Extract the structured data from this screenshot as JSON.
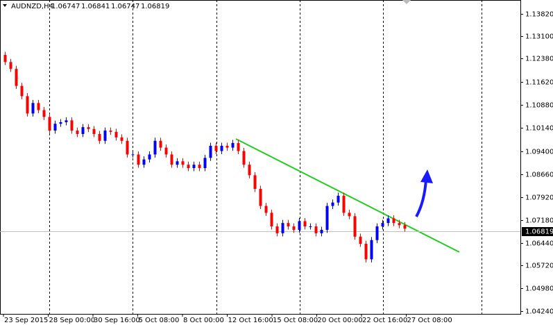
{
  "chart_data": {
    "type": "candlestick",
    "symbol": "AUDNZD,H4",
    "header_values": [
      1.06747,
      1.06841,
      1.06747,
      1.06819
    ],
    "last_price": 1.06819,
    "up_color": "#0000ff",
    "down_color": "#ff0000",
    "ylim": [
      1.0415,
      1.1427
    ],
    "yticks": [
      {
        "value": 1.1382,
        "label": "1.13820"
      },
      {
        "value": 1.131,
        "label": "1.13100"
      },
      {
        "value": 1.1238,
        "label": "1.12380"
      },
      {
        "value": 1.1162,
        "label": "1.11620"
      },
      {
        "value": 1.1088,
        "label": "1.10880"
      },
      {
        "value": 1.1014,
        "label": "1.10140"
      },
      {
        "value": 1.094,
        "label": "1.09400"
      },
      {
        "value": 1.0866,
        "label": "1.08660"
      },
      {
        "value": 1.0792,
        "label": "1.07920"
      },
      {
        "value": 1.0718,
        "label": "1.07180"
      },
      {
        "value": 1.0644,
        "label": "1.06440"
      },
      {
        "value": 1.0572,
        "label": "1.05720"
      },
      {
        "value": 1.0498,
        "label": "1.04980"
      },
      {
        "value": 1.0424,
        "label": "1.04240"
      }
    ],
    "x_labels": [
      "23 Sep 2015",
      "28 Sep 00:00",
      "30 Sep 16:00",
      "5 Oct 08:00",
      "8 Oct 00:00",
      "12 Oct 16:00",
      "15 Oct 08:00",
      "20 Oct 00:00",
      "22 Oct 16:00",
      "27 Oct 08:00"
    ],
    "open": [
      1.125,
      1.1227,
      1.1205,
      1.115,
      1.1117,
      1.1061,
      1.1095,
      1.1072,
      1.105,
      1.1006,
      1.1028,
      1.1033,
      1.1039,
      1.1006,
      1.0995,
      1.1017,
      1.1011,
      1.0995,
      1.0973,
      1.1006,
      1.1002,
      1.0984,
      1.0973,
      1.0929,
      1.0929,
      1.0896,
      1.0913,
      1.0929,
      1.0973,
      1.0951,
      1.0929,
      1.0896,
      1.0907,
      1.0896,
      1.0885,
      1.0896,
      1.0885,
      1.0918,
      1.0957,
      1.094,
      1.0957,
      1.0951,
      1.0966,
      1.094,
      1.0896,
      1.0862,
      1.0818,
      1.0763,
      1.0741,
      1.0697,
      1.0675,
      1.0708,
      1.0697,
      1.0686,
      1.0714,
      1.0697,
      1.0697,
      1.0675,
      1.0686,
      1.0763,
      1.0774,
      1.0796,
      1.0741,
      1.073,
      1.0664,
      1.0641,
      1.0591,
      1.0653,
      1.0697,
      1.0708,
      1.0723,
      1.0708,
      1.0701
    ],
    "high": [
      1.126,
      1.1237,
      1.1215,
      1.116,
      1.1127,
      1.1105,
      1.1105,
      1.1082,
      1.106,
      1.1038,
      1.1043,
      1.1049,
      1.1049,
      1.1016,
      1.1027,
      1.1027,
      1.1021,
      1.1005,
      1.1016,
      1.1016,
      1.1012,
      1.0994,
      1.0983,
      1.0939,
      1.0939,
      1.0923,
      1.0939,
      1.0983,
      1.0983,
      1.0961,
      1.0939,
      1.0917,
      1.0917,
      1.0906,
      1.0906,
      1.0906,
      1.0928,
      1.0967,
      1.0967,
      1.0967,
      1.0967,
      1.0976,
      1.0976,
      1.095,
      1.0906,
      1.0872,
      1.0828,
      1.0773,
      1.0751,
      1.0707,
      1.0718,
      1.0718,
      1.0707,
      1.0724,
      1.0724,
      1.0707,
      1.0707,
      1.0696,
      1.0773,
      1.0784,
      1.0806,
      1.0806,
      1.0751,
      1.074,
      1.0674,
      1.0651,
      1.0663,
      1.0707,
      1.0718,
      1.0733,
      1.0733,
      1.0718,
      1.0711
    ],
    "low": [
      1.1217,
      1.1195,
      1.114,
      1.1107,
      1.1051,
      1.1051,
      1.1062,
      1.104,
      1.0996,
      1.0996,
      1.1018,
      1.1023,
      1.0996,
      1.0985,
      1.0985,
      1.1001,
      1.0985,
      1.0963,
      1.0963,
      1.0992,
      1.0974,
      1.0963,
      1.0919,
      1.0919,
      1.0886,
      1.0886,
      1.0903,
      1.0919,
      1.0941,
      1.0919,
      1.0886,
      1.0886,
      1.0886,
      1.0875,
      1.0875,
      1.0875,
      1.0875,
      1.0908,
      1.093,
      1.093,
      1.0941,
      1.0941,
      1.093,
      1.0886,
      1.0852,
      1.0808,
      1.0753,
      1.0731,
      1.0687,
      1.0665,
      1.0665,
      1.0687,
      1.0676,
      1.0676,
      1.0687,
      1.0687,
      1.0665,
      1.0665,
      1.0676,
      1.0753,
      1.0764,
      1.0731,
      1.072,
      1.0654,
      1.0631,
      1.0581,
      1.0581,
      1.0643,
      1.0687,
      1.0698,
      1.0698,
      1.0691,
      1.068
    ],
    "close": [
      1.1227,
      1.1205,
      1.115,
      1.1117,
      1.1061,
      1.1095,
      1.1072,
      1.105,
      1.1006,
      1.1028,
      1.1033,
      1.1039,
      1.1006,
      1.0995,
      1.1017,
      1.1011,
      1.0995,
      1.0973,
      1.1006,
      1.1002,
      1.0984,
      1.0973,
      1.0929,
      1.0929,
      1.0896,
      1.0913,
      1.0929,
      1.0973,
      1.0951,
      1.0929,
      1.0896,
      1.0907,
      1.0896,
      1.0885,
      1.0896,
      1.0885,
      1.0918,
      1.0957,
      1.094,
      1.0957,
      1.0951,
      1.0966,
      1.094,
      1.0896,
      1.0862,
      1.0818,
      1.0763,
      1.0741,
      1.0697,
      1.0675,
      1.0708,
      1.0697,
      1.0686,
      1.0714,
      1.0697,
      1.0697,
      1.0675,
      1.0686,
      1.0763,
      1.0774,
      1.0796,
      1.0741,
      1.073,
      1.0664,
      1.0641,
      1.0591,
      1.0653,
      1.0697,
      1.0708,
      1.0723,
      1.0708,
      1.0701,
      1.069
    ]
  }
}
